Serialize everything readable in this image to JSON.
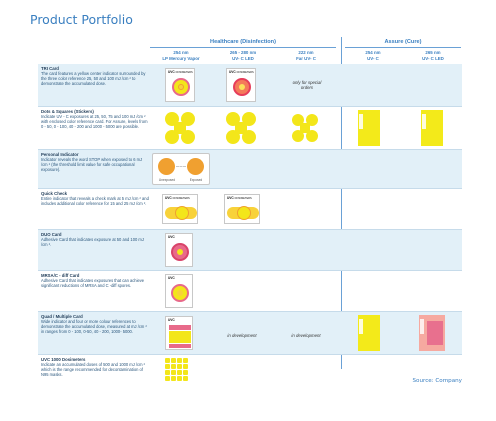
{
  "page": {
    "title": "Product Portfolio",
    "source": "Source: Company"
  },
  "groups": {
    "healthcare": "Healthcare (Disinfection)",
    "assure": "Assure (Cure)"
  },
  "columns": [
    {
      "line1": "254 nm",
      "line2": "LP Mercury Vapor"
    },
    {
      "line1": "265 - 280 nm",
      "line2": "UV- C LED"
    },
    {
      "line1": "222 nm",
      "line2": "Far UV- C"
    },
    {
      "line1": "254 nm",
      "line2": "UV- C"
    },
    {
      "line1": "265 nm",
      "line2": "UV- C LED"
    }
  ],
  "logo_text": "UVC",
  "brand_text": "DOSIMETERS",
  "personal_labels": {
    "unexposed": "Unexposed",
    "exposed": "Exposed"
  },
  "rows": [
    {
      "name": "TRI Card",
      "desc": "The card features a yellow center indicator surrounded by the three color reference 25, 50 and 100   mJ /cm  ² to demonstrate the accumulated dose.",
      "note_far": "only for special orders"
    },
    {
      "name": "Dots & Squares (Stickers)",
      "desc": "Indicate UV - C exposures at 25, 50, 75 and 100 mJ /cm  ² with enclosed color reference card.    For Assure, levels from 0 - 50, 0 - 100, 40 - 200 and 1000 - 5000 are possible."
    },
    {
      "name": "Personal Indicator",
      "desc": "Indicator reveals the word STOP when exposed to   6 mJ /cm  ² (the threshold limit value for safe occupational exposure)."
    },
    {
      "name": "Quick Check",
      "desc": "Entire indicator that reveals a check mark at 5   mJ /cm  ² and includes additional color    reference for 15 and 25 mJ /cm  ²."
    },
    {
      "name": "DUO Card",
      "desc": "Adhesive Card that indicates exposure at 50 and 100   mJ /cm  ²."
    },
    {
      "name": "MRSA/C - diff Card",
      "desc": "Adhesive Card that indicates exposures that can achieve significant reductions of MRSA and C    -diff spores."
    },
    {
      "name": "Quad / Multiple Card",
      "desc": "Wide indicator and four or more colour references to demonstrate the accumulated dose, measured at mJ /cm  ² in ranges from 0   - 100, 0-50, 40 - 200, 1000- 5000.",
      "note_led": "in development",
      "note_far": "in development"
    },
    {
      "name": "UVC 1000 Dosimeters",
      "desc": "Indicate   an accumulated doses of     500 and 1000  mJ /cm  ² which is the range recommended for decontamination of N95 masks."
    }
  ],
  "colors": {
    "accent": "#3a7fc0",
    "row_shade": "#e2f0f8",
    "yellow": "#f3e61a",
    "orange": "#f0a030",
    "pink": "#e86a8a"
  }
}
